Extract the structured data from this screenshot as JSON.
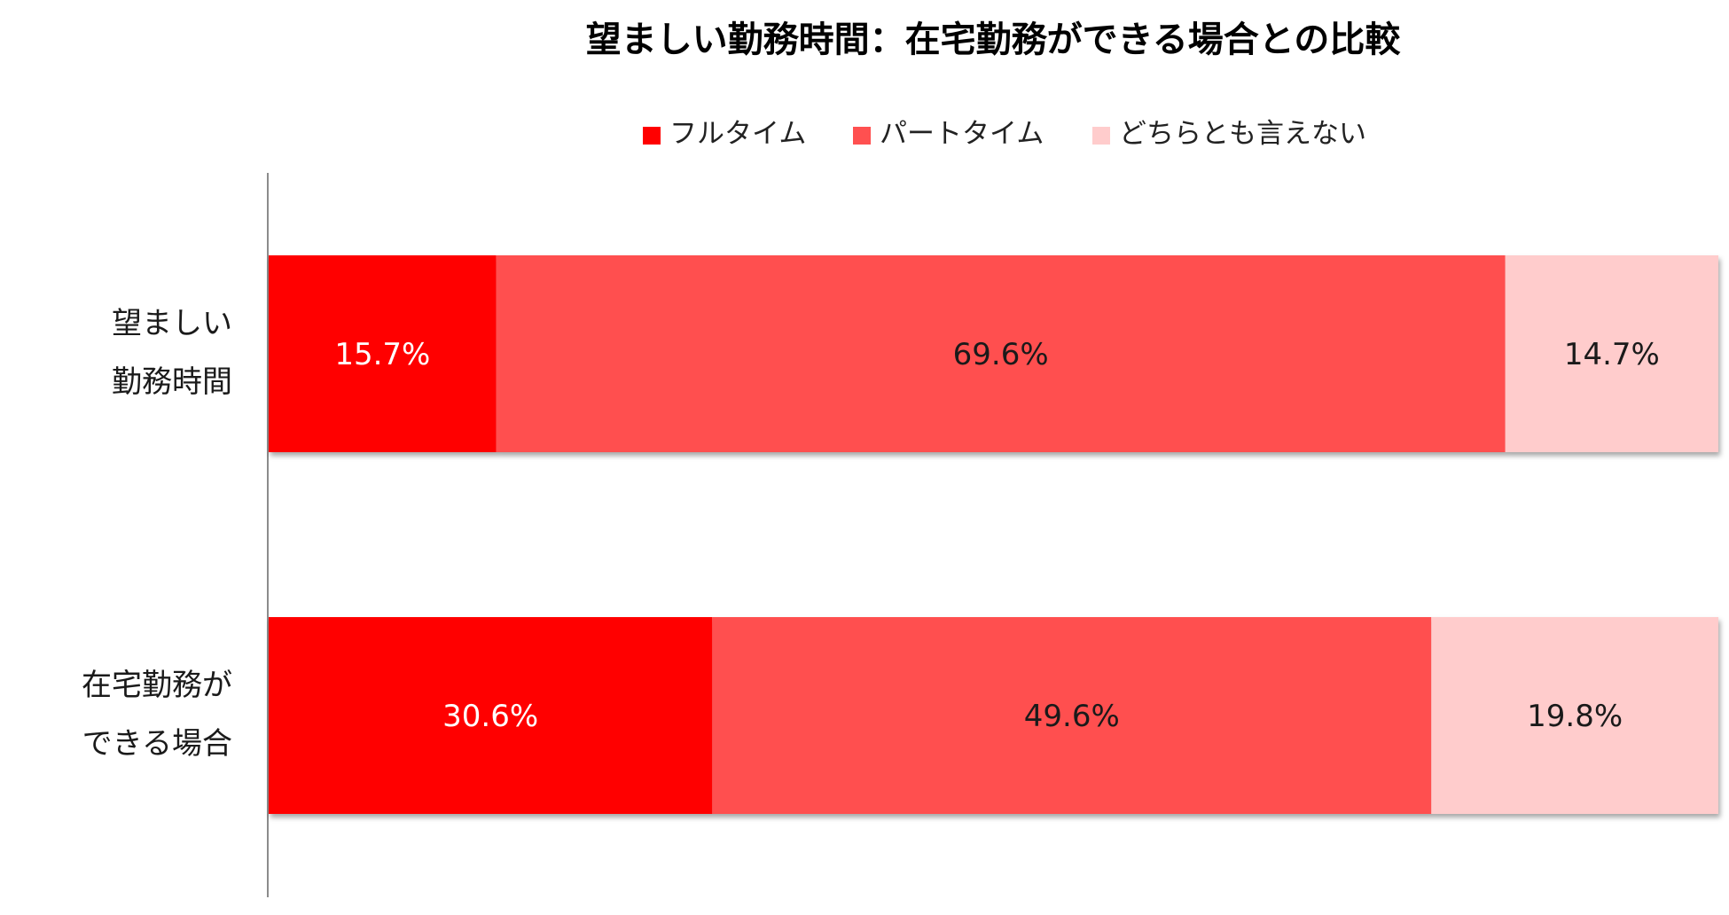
{
  "chart_data": {
    "type": "bar",
    "orientation": "horizontal",
    "stacked": true,
    "title": "望ましい勤務時間：在宅勤務ができる場合との比較",
    "categories": [
      [
        "望ましい",
        "勤務時間"
      ],
      [
        "在宅勤務が",
        "できる場合"
      ]
    ],
    "series": [
      {
        "name": "フルタイム",
        "values": [
          15.7,
          30.6
        ],
        "color": "#ff0000",
        "label_color": "#ffffff"
      },
      {
        "name": "パートタイム",
        "values": [
          69.6,
          49.6
        ],
        "color": "#ff5050",
        "label_color": "#1a1a1a"
      },
      {
        "name": "どちらとも言えない",
        "values": [
          14.7,
          19.8
        ],
        "color": "#ffcccc",
        "label_color": "#1a1a1a"
      }
    ],
    "value_labels": [
      [
        "15.7%",
        "30.6%"
      ],
      [
        "69.6%",
        "49.6%"
      ],
      [
        "14.7%",
        "19.8%"
      ]
    ],
    "xlim": [
      0,
      100
    ],
    "unit": "%",
    "legend_position": "top",
    "grid": false
  }
}
